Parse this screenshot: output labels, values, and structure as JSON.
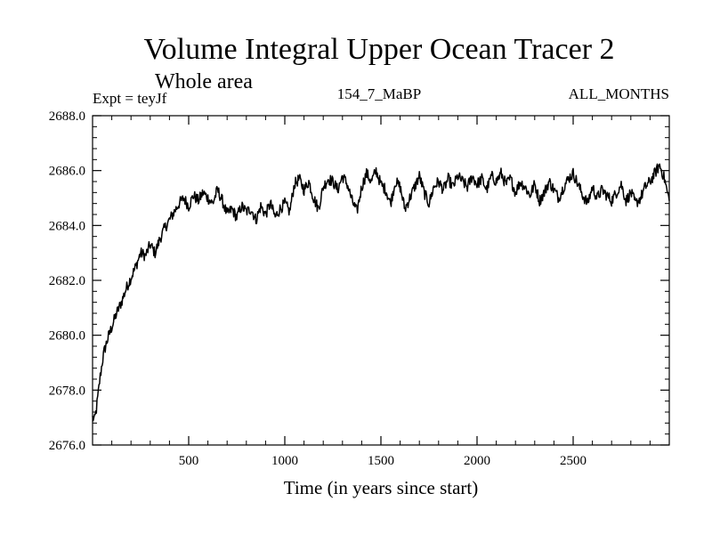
{
  "chart_data": {
    "type": "line",
    "title": "Volume Integral Upper Ocean Tracer 2",
    "subtitle": "Whole area",
    "left_label": "Expt = teyJf",
    "center_label": "154_7_MaBP",
    "right_label": "ALL_MONTHS",
    "xlabel": "Time (in years since start)",
    "ylabel": "",
    "xlim": [
      0,
      3000
    ],
    "ylim": [
      2676.0,
      2688.0
    ],
    "x_ticks": [
      500,
      1000,
      1500,
      2000,
      2500
    ],
    "x_tick_labels": [
      "500",
      "1000",
      "1500",
      "2000",
      "2500"
    ],
    "x_minor_step": 100,
    "y_ticks": [
      2676.0,
      2678.0,
      2680.0,
      2682.0,
      2684.0,
      2686.0,
      2688.0
    ],
    "y_tick_labels": [
      "2676.0",
      "2678.0",
      "2680.0",
      "2682.0",
      "2684.0",
      "2686.0",
      "2688.0"
    ],
    "y_minor_step": 0.4,
    "grid": false,
    "line_color": "#000000",
    "series": [
      {
        "name": "Volume Integral Upper Ocean Tracer 2",
        "x": [
          0,
          10,
          20,
          30,
          40,
          50,
          60,
          80,
          100,
          125,
          150,
          175,
          200,
          225,
          250,
          275,
          300,
          325,
          350,
          375,
          400,
          425,
          450,
          475,
          500,
          525,
          550,
          575,
          600,
          625,
          650,
          675,
          700,
          725,
          750,
          775,
          800,
          825,
          850,
          875,
          900,
          925,
          950,
          975,
          1000,
          1025,
          1050,
          1075,
          1100,
          1125,
          1150,
          1175,
          1200,
          1225,
          1250,
          1275,
          1300,
          1325,
          1350,
          1375,
          1400,
          1425,
          1450,
          1475,
          1500,
          1525,
          1550,
          1575,
          1600,
          1625,
          1650,
          1675,
          1700,
          1725,
          1750,
          1775,
          1800,
          1825,
          1850,
          1875,
          1900,
          1925,
          1950,
          1975,
          2000,
          2025,
          2050,
          2075,
          2100,
          2125,
          2150,
          2175,
          2200,
          2225,
          2250,
          2275,
          2300,
          2325,
          2350,
          2375,
          2400,
          2425,
          2450,
          2475,
          2500,
          2525,
          2550,
          2575,
          2600,
          2625,
          2650,
          2675,
          2700,
          2725,
          2750,
          2775,
          2800,
          2825,
          2850,
          2875,
          2900,
          2925,
          2950,
          2975,
          2990,
          3000
        ],
        "values": [
          2677.0,
          2676.9,
          2677.3,
          2677.9,
          2678.5,
          2679.0,
          2679.4,
          2679.9,
          2680.3,
          2680.8,
          2681.2,
          2681.7,
          2682.1,
          2682.5,
          2683.0,
          2682.9,
          2683.3,
          2683.0,
          2683.5,
          2683.9,
          2684.2,
          2684.5,
          2684.8,
          2685.0,
          2684.7,
          2685.1,
          2684.9,
          2685.2,
          2685.0,
          2684.8,
          2685.3,
          2684.9,
          2684.4,
          2684.6,
          2684.3,
          2684.7,
          2684.5,
          2684.6,
          2684.2,
          2684.7,
          2684.4,
          2684.8,
          2684.3,
          2684.6,
          2684.8,
          2684.5,
          2685.5,
          2685.7,
          2685.3,
          2685.6,
          2685.0,
          2684.6,
          2685.4,
          2685.7,
          2685.6,
          2685.3,
          2685.8,
          2685.5,
          2684.9,
          2684.5,
          2685.4,
          2685.9,
          2685.6,
          2686.0,
          2685.5,
          2685.3,
          2684.8,
          2685.6,
          2685.4,
          2684.6,
          2685.0,
          2685.4,
          2685.8,
          2685.2,
          2684.8,
          2685.4,
          2685.6,
          2685.3,
          2685.7,
          2685.4,
          2685.8,
          2685.6,
          2685.4,
          2685.8,
          2685.5,
          2685.7,
          2685.3,
          2685.8,
          2685.6,
          2685.9,
          2685.5,
          2685.7,
          2685.2,
          2685.6,
          2685.4,
          2685.1,
          2685.5,
          2684.9,
          2685.2,
          2685.6,
          2685.3,
          2685.0,
          2685.4,
          2685.7,
          2685.9,
          2685.5,
          2685.1,
          2684.8,
          2685.4,
          2685.0,
          2685.3,
          2685.1,
          2684.9,
          2685.2,
          2685.5,
          2684.9,
          2685.2,
          2684.8,
          2685.0,
          2685.4,
          2685.6,
          2685.9,
          2686.2,
          2685.7,
          2685.2,
          2684.9
        ]
      }
    ]
  }
}
